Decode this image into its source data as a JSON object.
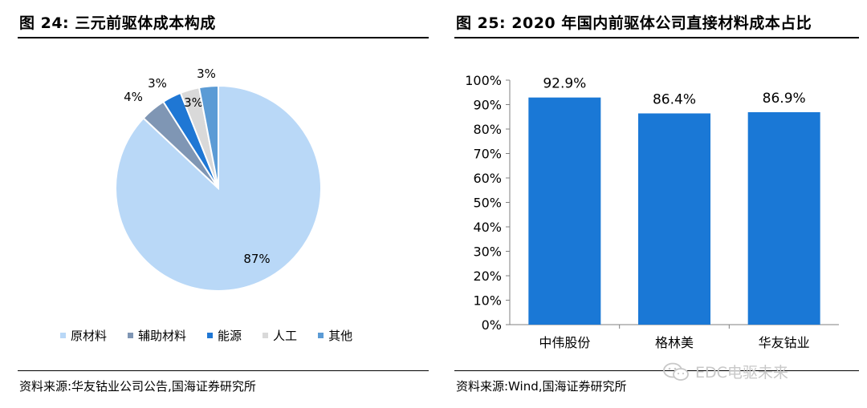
{
  "left": {
    "title": "图 24:  三元前驱体成本构成",
    "source": "资料来源:华友钴业公司公告,国海证券研究所"
  },
  "right": {
    "title": "图 25:  2020 年国内前驱体公司直接材料成本占比",
    "source": "资料来源:Wind,国海证券研究所"
  },
  "watermark": {
    "text": "EDC电驱未来",
    "icon": "wechat-icon"
  },
  "chart_data": [
    {
      "type": "pie",
      "title": "",
      "slices": [
        {
          "label": "原材料",
          "value": 87,
          "display": "87%",
          "color": "#b9d8f7"
        },
        {
          "label": "辅助材料",
          "value": 4,
          "display": "4%",
          "color": "#7f96b4"
        },
        {
          "label": "能源",
          "value": 3,
          "display": "3%",
          "color": "#1f77d4"
        },
        {
          "label": "人工",
          "value": 3,
          "display": "3%",
          "color": "#d9d9d9"
        },
        {
          "label": "其他",
          "value": 3,
          "display": "3%",
          "color": "#5b9bd5"
        }
      ],
      "legend": "bottom"
    },
    {
      "type": "bar",
      "title": "",
      "categories": [
        "中伟股份",
        "格林美",
        "华友钴业"
      ],
      "values": [
        92.9,
        86.4,
        86.9
      ],
      "labels": [
        "92.9%",
        "86.4%",
        "86.9%"
      ],
      "ylim": [
        0,
        100
      ],
      "yticks": [
        "0%",
        "10%",
        "20%",
        "30%",
        "40%",
        "50%",
        "60%",
        "70%",
        "80%",
        "90%",
        "100%"
      ],
      "color": "#1a78d6",
      "grid": false
    }
  ]
}
